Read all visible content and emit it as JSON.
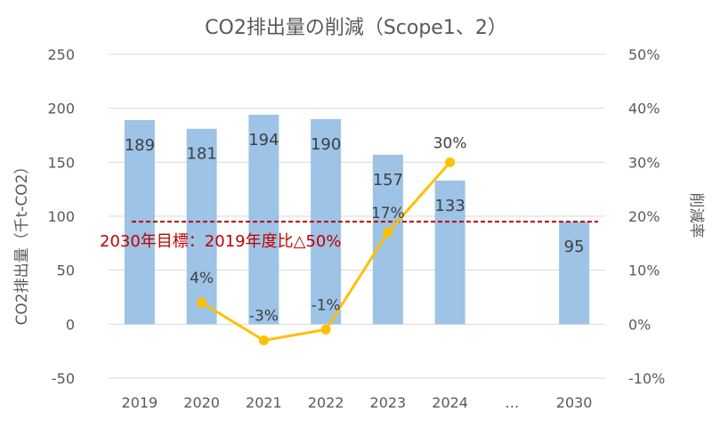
{
  "chart_data": {
    "type": "bar",
    "title": "CO2排出量の削減（Scope1、2）",
    "ylabel": "CO2排出量（千t-CO2）",
    "y2label": "削減率",
    "categories": [
      "2019",
      "2020",
      "2021",
      "2022",
      "2023",
      "2024",
      "…",
      "2030"
    ],
    "ylim": [
      -50,
      250
    ],
    "yticks": [
      -50,
      0,
      50,
      100,
      150,
      200,
      250
    ],
    "y2lim": [
      -10,
      50
    ],
    "y2ticks": [
      "-10%",
      "0%",
      "10%",
      "20%",
      "30%",
      "40%",
      "50%"
    ],
    "grid": true,
    "legend": "none",
    "series": [
      {
        "kind": "bar",
        "color": "#9dc3e6",
        "values": [
          189,
          181,
          194,
          190,
          157,
          133,
          null,
          95
        ],
        "labels": [
          "189",
          "181",
          "194",
          "190",
          "157",
          "133",
          "",
          "95"
        ]
      },
      {
        "kind": "line",
        "axis": "secondary",
        "color": "#ffc000",
        "values": [
          null,
          4,
          -3,
          -1,
          17,
          30,
          null,
          null
        ],
        "labels": [
          "",
          "4%",
          "-3%",
          "-1%",
          "17%",
          "30%",
          "",
          ""
        ]
      }
    ],
    "target": {
      "value": 95,
      "label": "2030年目標：2019年度比△50%",
      "color": "#c00000"
    }
  }
}
